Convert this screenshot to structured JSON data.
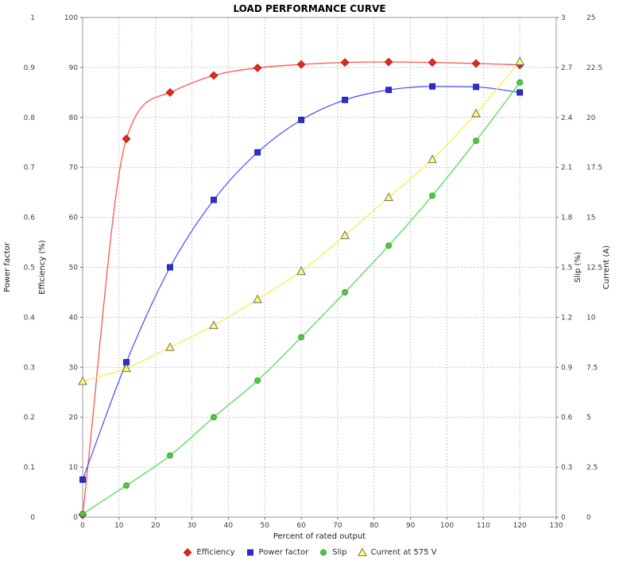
{
  "window": {
    "title": "LOAD PERFORMANCE CURVE"
  },
  "chart_data": {
    "type": "line",
    "title": "LOAD PERFORMANCE CURVE",
    "xlabel": "Percent of rated output",
    "xlim": [
      0,
      130
    ],
    "x_tick_labels": [
      "0",
      "10",
      "20",
      "30",
      "40",
      "50",
      "60",
      "70",
      "80",
      "90",
      "100",
      "110",
      "120",
      "130"
    ],
    "grid": "dashed",
    "grid_color": "#c8c8c8",
    "border_color": "#999999",
    "tick_color": "#666666",
    "tick_label_color": "#3f3f3f",
    "axis_title_color": "#1a1a1a",
    "legend_position": "bottom",
    "axes": [
      {
        "id": "efficiency",
        "label": "Efficiency (%)",
        "side": "left",
        "range": [
          0,
          100
        ],
        "tick_labels": [
          "0",
          "10",
          "20",
          "30",
          "40",
          "50",
          "60",
          "70",
          "80",
          "90",
          "100"
        ]
      },
      {
        "id": "power_factor",
        "label": "Power factor",
        "side": "left",
        "range": [
          0,
          1
        ],
        "tick_labels": [
          "0",
          "0.1",
          "0.2",
          "0.3",
          "0.4",
          "0.5",
          "0.6",
          "0.7",
          "0.8",
          "0.9",
          "1"
        ]
      },
      {
        "id": "slip",
        "label": "Slip (%)",
        "side": "right",
        "range": [
          0,
          3
        ],
        "tick_labels": [
          "0",
          "0.3",
          "0.6",
          "0.9",
          "1.2",
          "1.5",
          "1.8",
          "2.1",
          "2.4",
          "2.7",
          "3"
        ]
      },
      {
        "id": "current",
        "label": "Current (A)",
        "side": "right",
        "range": [
          0,
          25
        ],
        "tick_labels": [
          "0",
          "2.5",
          "5",
          "7.5",
          "10",
          "12.5",
          "15",
          "17.5",
          "20",
          "22.5",
          "25"
        ]
      }
    ],
    "x": [
      0,
      12,
      24,
      36,
      48,
      60,
      72,
      84,
      96,
      108,
      120
    ],
    "series": [
      {
        "name": "Efficiency",
        "axis": "efficiency",
        "marker": "diamond",
        "line_color": "#ff5555",
        "marker_fill": "#e02b22",
        "marker_stroke": "#b01a14",
        "values": [
          0.5,
          75.7,
          85.0,
          88.4,
          89.9,
          90.6,
          91.0,
          91.1,
          91.0,
          90.8,
          90.5
        ]
      },
      {
        "name": "Power factor",
        "axis": "power_factor",
        "marker": "square",
        "line_color": "#5555ff",
        "marker_fill": "#2e2ecc",
        "marker_stroke": "#1f1f99",
        "values": [
          0.075,
          0.31,
          0.5,
          0.635,
          0.73,
          0.795,
          0.835,
          0.855,
          0.862,
          0.861,
          0.85
        ]
      },
      {
        "name": "Slip",
        "axis": "slip",
        "marker": "circle",
        "line_color": "#55dd55",
        "marker_fill": "#4fc93e",
        "marker_stroke": "#2f9c2f",
        "values": [
          0.02,
          0.19,
          0.37,
          0.6,
          0.82,
          1.08,
          1.35,
          1.63,
          1.93,
          2.26,
          2.61
        ]
      },
      {
        "name": "Current at 575 V",
        "axis": "current",
        "marker": "triangle",
        "line_color": "#f2ef55",
        "marker_fill": "#ffff55",
        "marker_stroke": "#5b5b8f",
        "values": [
          6.8,
          7.45,
          8.5,
          9.6,
          10.9,
          12.3,
          14.1,
          16.0,
          17.9,
          20.2,
          22.8
        ]
      }
    ]
  }
}
